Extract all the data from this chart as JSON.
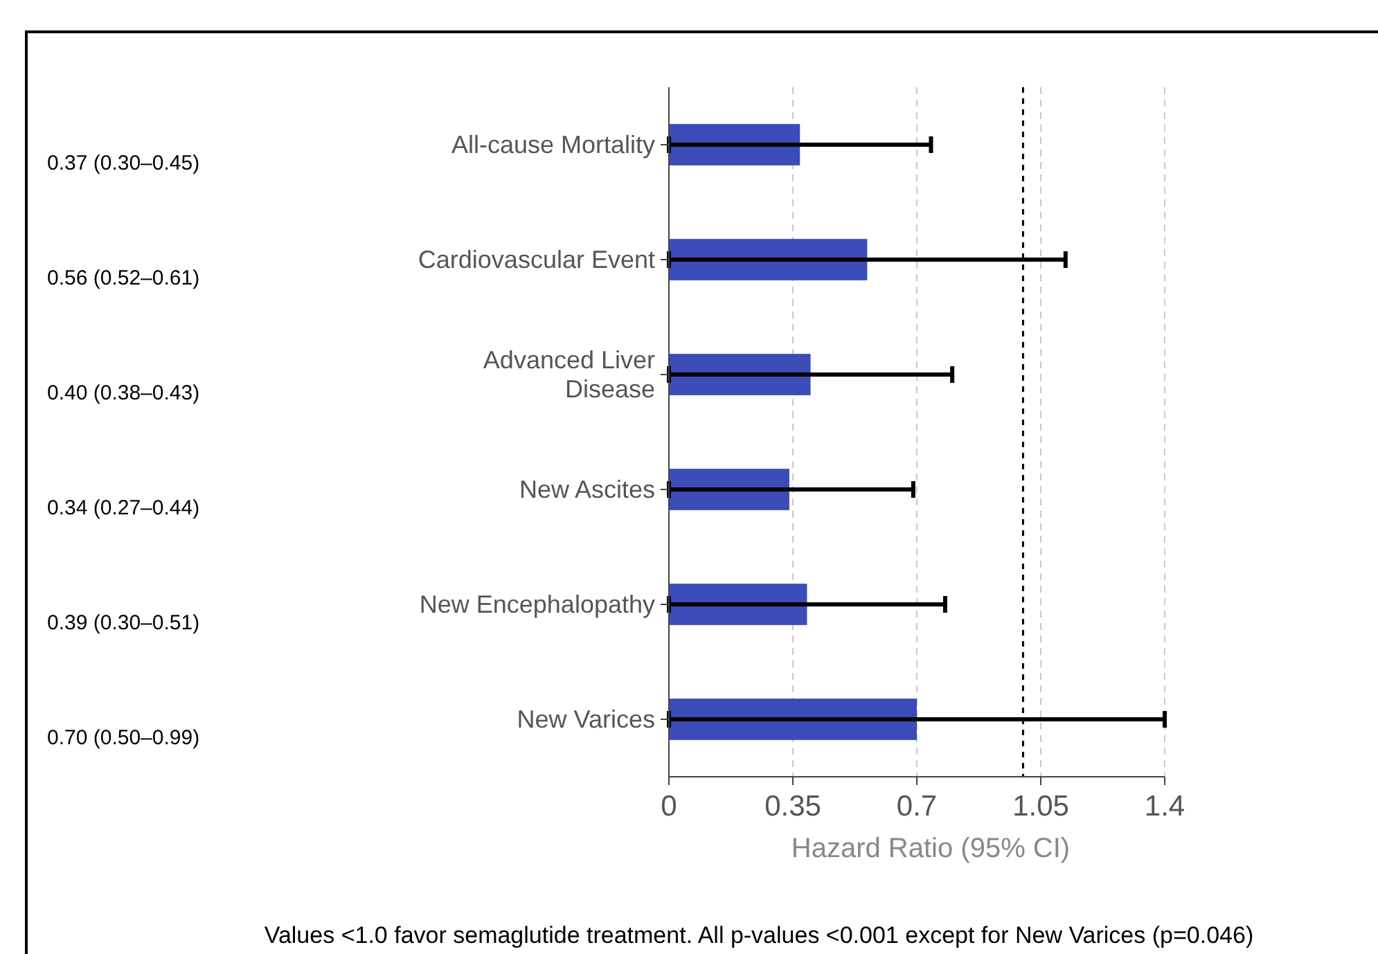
{
  "chart_data": {
    "type": "bar",
    "orientation": "horizontal",
    "xlabel": "Hazard Ratio (95% CI)",
    "categories": [
      "All-cause Mortality",
      "Cardiovascular Event",
      "Advanced Liver Disease",
      "New Ascites",
      "New Encephalopathy",
      "New Varices"
    ],
    "values": [
      0.37,
      0.56,
      0.4,
      0.34,
      0.39,
      0.7
    ],
    "errors": [
      [
        0,
        0.74
      ],
      [
        0,
        1.12
      ],
      [
        0,
        0.8
      ],
      [
        0,
        0.69
      ],
      [
        0,
        0.78
      ],
      [
        0,
        1.4
      ]
    ],
    "color": "#3b4cb8",
    "xlim": [
      0,
      1.4
    ],
    "xticks": [
      0,
      0.35,
      0.7,
      1.05,
      1.4
    ],
    "grid": "x",
    "ref_lines": [
      {
        "axis": "x",
        "value": 1,
        "color": "#000000",
        "line_style": "dashed"
      }
    ],
    "annotations": [
      "0.37 (0.30–0.45)",
      "0.56 (0.52–0.61)",
      "0.40 (0.38–0.43)",
      "0.34 (0.27–0.44)",
      "0.39 (0.30–0.51)",
      "0.70 (0.50–0.99)",
      "Values <1.0 favor semaglutide treatment. All p-values <0.001 except for New Varices (p=0.046)"
    ]
  }
}
